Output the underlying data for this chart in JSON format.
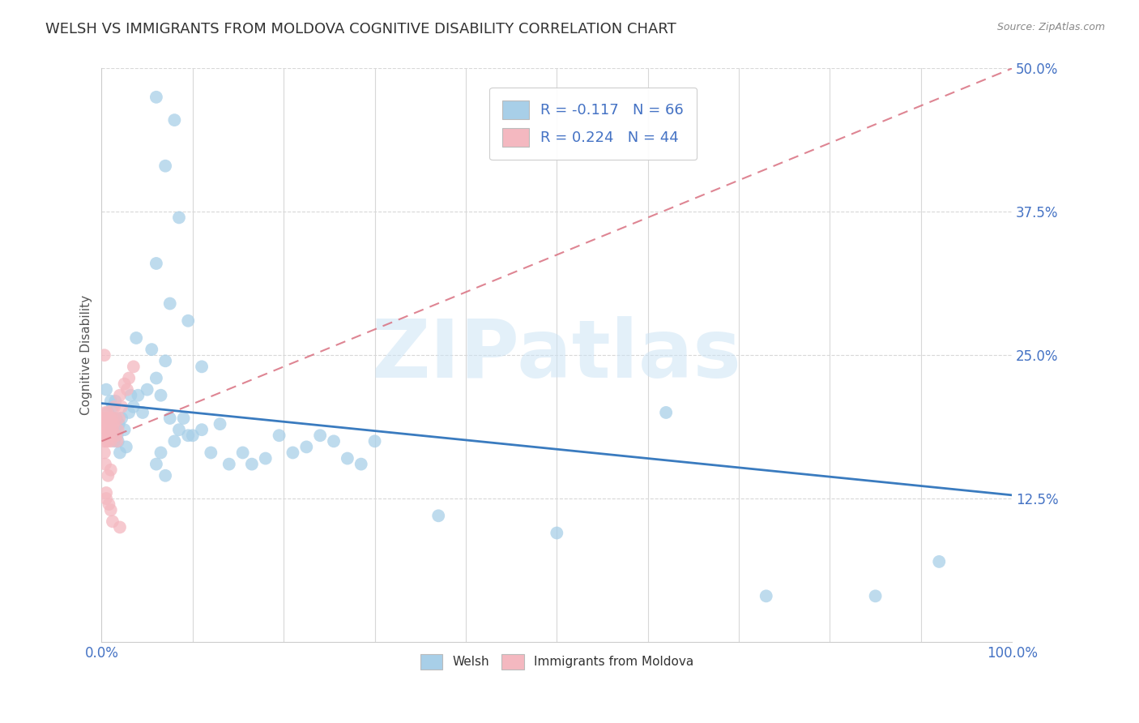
{
  "title": "WELSH VS IMMIGRANTS FROM MOLDOVA COGNITIVE DISABILITY CORRELATION CHART",
  "source": "Source: ZipAtlas.com",
  "ylabel": "Cognitive Disability",
  "watermark": "ZIPatlas",
  "r_welsh": -0.117,
  "n_welsh": 66,
  "r_moldova": 0.224,
  "n_moldova": 44,
  "xlim": [
    0.0,
    1.0
  ],
  "ylim": [
    0.0,
    0.5
  ],
  "xtick_positions": [
    0.0,
    1.0
  ],
  "xticklabels": [
    "0.0%",
    "100.0%"
  ],
  "ytick_positions": [
    0.125,
    0.25,
    0.375,
    0.5
  ],
  "yticklabels": [
    "12.5%",
    "25.0%",
    "37.5%",
    "50.0%"
  ],
  "color_welsh": "#a8cfe8",
  "color_moldova": "#f4b8c0",
  "line_color_welsh": "#3a7bbf",
  "line_color_moldova": "#d97080",
  "axis_color": "#4472c4",
  "tick_color_right": "#4472c4",
  "background_color": "#ffffff",
  "grid_color": "#d8d8d8",
  "title_fontsize": 13,
  "label_fontsize": 11,
  "tick_fontsize": 12,
  "legend_fontsize": 13,
  "welsh_x": [
    0.005,
    0.007,
    0.008,
    0.01,
    0.011,
    0.012,
    0.013,
    0.014,
    0.015,
    0.016,
    0.017,
    0.018,
    0.019,
    0.02,
    0.022,
    0.025,
    0.027,
    0.03,
    0.032,
    0.035,
    0.038,
    0.04,
    0.045,
    0.05,
    0.055,
    0.06,
    0.065,
    0.07,
    0.075,
    0.08,
    0.085,
    0.09,
    0.1,
    0.11,
    0.12,
    0.13,
    0.14,
    0.155,
    0.165,
    0.18,
    0.195,
    0.21,
    0.225,
    0.24,
    0.255,
    0.27,
    0.285,
    0.3,
    0.085,
    0.06,
    0.075,
    0.095,
    0.11,
    0.06,
    0.08,
    0.07,
    0.37,
    0.5,
    0.62,
    0.73,
    0.85,
    0.92,
    0.095,
    0.065,
    0.06,
    0.07
  ],
  "welsh_y": [
    0.22,
    0.2,
    0.195,
    0.21,
    0.185,
    0.205,
    0.18,
    0.175,
    0.21,
    0.195,
    0.18,
    0.175,
    0.19,
    0.165,
    0.195,
    0.185,
    0.17,
    0.2,
    0.215,
    0.205,
    0.265,
    0.215,
    0.2,
    0.22,
    0.255,
    0.23,
    0.215,
    0.245,
    0.195,
    0.175,
    0.185,
    0.195,
    0.18,
    0.185,
    0.165,
    0.19,
    0.155,
    0.165,
    0.155,
    0.16,
    0.18,
    0.165,
    0.17,
    0.18,
    0.175,
    0.16,
    0.155,
    0.175,
    0.37,
    0.33,
    0.295,
    0.28,
    0.24,
    0.475,
    0.455,
    0.415,
    0.11,
    0.095,
    0.2,
    0.04,
    0.04,
    0.07,
    0.18,
    0.165,
    0.155,
    0.145
  ],
  "moldova_x": [
    0.001,
    0.002,
    0.003,
    0.003,
    0.004,
    0.004,
    0.005,
    0.005,
    0.006,
    0.006,
    0.007,
    0.007,
    0.008,
    0.008,
    0.009,
    0.009,
    0.01,
    0.01,
    0.011,
    0.012,
    0.013,
    0.014,
    0.015,
    0.016,
    0.017,
    0.018,
    0.019,
    0.02,
    0.022,
    0.025,
    0.028,
    0.03,
    0.035,
    0.003,
    0.005,
    0.007,
    0.01,
    0.003,
    0.004,
    0.005,
    0.008,
    0.01,
    0.012,
    0.02
  ],
  "moldova_y": [
    0.195,
    0.185,
    0.195,
    0.175,
    0.2,
    0.185,
    0.195,
    0.175,
    0.2,
    0.185,
    0.19,
    0.175,
    0.195,
    0.18,
    0.185,
    0.195,
    0.19,
    0.175,
    0.195,
    0.185,
    0.19,
    0.205,
    0.195,
    0.18,
    0.175,
    0.185,
    0.195,
    0.215,
    0.205,
    0.225,
    0.22,
    0.23,
    0.24,
    0.25,
    0.13,
    0.145,
    0.15,
    0.165,
    0.155,
    0.125,
    0.12,
    0.115,
    0.105,
    0.1
  ],
  "welsh_trend_x": [
    0.0,
    1.0
  ],
  "welsh_trend_y": [
    0.208,
    0.128
  ],
  "moldova_trend_x": [
    0.0,
    1.0
  ],
  "moldova_trend_y": [
    0.175,
    0.5
  ]
}
